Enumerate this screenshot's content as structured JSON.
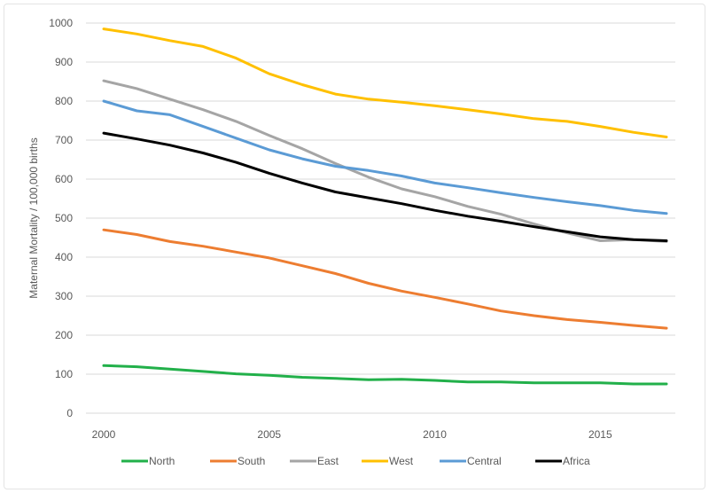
{
  "chart_data": {
    "type": "line",
    "title": "",
    "xlabel": "",
    "ylabel": "Maternal Mortality / 100,000 births",
    "x": [
      2000,
      2001,
      2002,
      2003,
      2004,
      2005,
      2006,
      2007,
      2008,
      2009,
      2010,
      2011,
      2012,
      2013,
      2014,
      2015,
      2016,
      2017
    ],
    "xticks": [
      2000,
      2005,
      2010,
      2015
    ],
    "ylim": [
      0,
      1000
    ],
    "yticks": [
      0,
      100,
      200,
      300,
      400,
      500,
      600,
      700,
      800,
      900,
      1000
    ],
    "grid": true,
    "legend": "bottom",
    "series": [
      {
        "name": "North",
        "color": "#22b04a",
        "values": [
          122,
          119,
          113,
          107,
          101,
          97,
          92,
          89,
          86,
          87,
          84,
          80,
          80,
          78,
          78,
          78,
          75,
          75
        ]
      },
      {
        "name": "South",
        "color": "#ed7d31",
        "values": [
          470,
          458,
          440,
          428,
          413,
          398,
          378,
          358,
          333,
          313,
          297,
          280,
          262,
          250,
          240,
          233,
          225,
          218
        ]
      },
      {
        "name": "East",
        "color": "#a5a5a5",
        "values": [
          852,
          832,
          805,
          778,
          748,
          712,
          678,
          640,
          605,
          575,
          555,
          530,
          510,
          485,
          462,
          442,
          445,
          440
        ]
      },
      {
        "name": "West",
        "color": "#ffc000",
        "values": [
          985,
          972,
          955,
          940,
          910,
          870,
          842,
          818,
          805,
          797,
          788,
          778,
          767,
          755,
          748,
          735,
          720,
          708
        ]
      },
      {
        "name": "Central",
        "color": "#5b9bd5",
        "values": [
          800,
          775,
          765,
          735,
          705,
          675,
          652,
          633,
          622,
          608,
          590,
          578,
          565,
          553,
          542,
          532,
          520,
          512
        ]
      },
      {
        "name": "Africa",
        "color": "#000000",
        "values": [
          718,
          703,
          687,
          667,
          643,
          615,
          590,
          567,
          552,
          537,
          520,
          505,
          492,
          478,
          465,
          452,
          445,
          442
        ]
      }
    ]
  }
}
